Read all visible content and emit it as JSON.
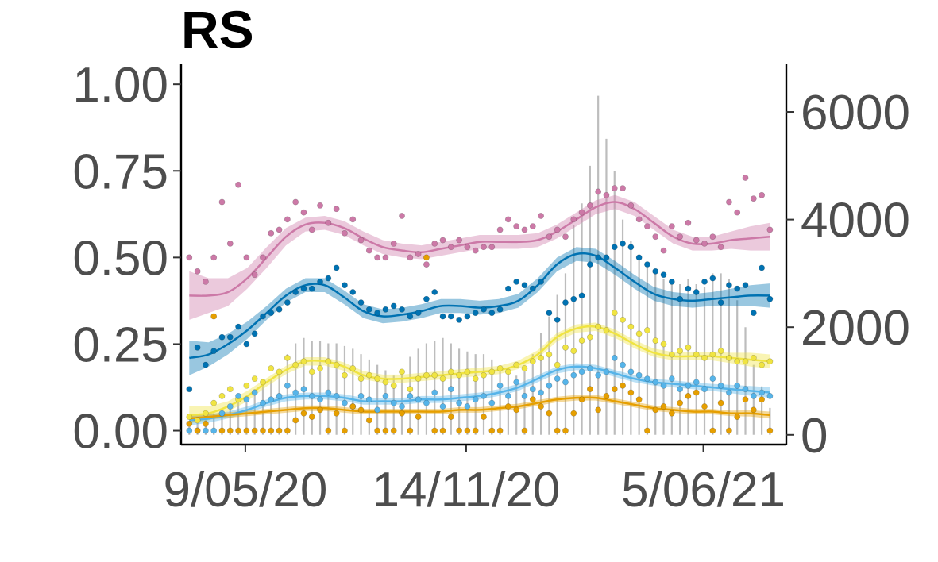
{
  "chart_data": {
    "type": "line",
    "title": "RS",
    "xlabel": "",
    "ylabel": "",
    "x_range": [
      "2020-03-15",
      "2021-08-15"
    ],
    "y_left_range": [
      -0.04,
      1.06
    ],
    "y_right_range": [
      -180,
      6900
    ],
    "y_left_ticks": [
      "0.00",
      "0.25",
      "0.50",
      "0.75",
      "1.00"
    ],
    "y_right_ticks": [
      "0",
      "2000",
      "4000",
      "6000"
    ],
    "x_ticks": [
      {
        "date": "2020-05-09",
        "label": "9/05/20"
      },
      {
        "date": "2020-11-14",
        "label": "14/11/20"
      },
      {
        "date": "2021-06-05",
        "label": "5/06/21"
      }
    ],
    "grid": false,
    "legend": "none",
    "bars": {
      "axis": "right",
      "color": "#bdbdbd",
      "dates": [
        "2020-03-22",
        "2020-03-29",
        "2020-04-05",
        "2020-04-12",
        "2020-04-19",
        "2020-04-26",
        "2020-05-03",
        "2020-05-10",
        "2020-05-17",
        "2020-05-24",
        "2020-05-31",
        "2020-06-07",
        "2020-06-14",
        "2020-06-21",
        "2020-06-28",
        "2020-07-05",
        "2020-07-12",
        "2020-07-19",
        "2020-07-26",
        "2020-08-02",
        "2020-08-09",
        "2020-08-16",
        "2020-08-23",
        "2020-08-30",
        "2020-09-06",
        "2020-09-13",
        "2020-09-20",
        "2020-09-27",
        "2020-10-04",
        "2020-10-11",
        "2020-10-18",
        "2020-10-25",
        "2020-11-01",
        "2020-11-08",
        "2020-11-15",
        "2020-11-22",
        "2020-11-29",
        "2020-12-06",
        "2020-12-13",
        "2020-12-20",
        "2020-12-27",
        "2021-01-03",
        "2021-01-10",
        "2021-01-17",
        "2021-01-24",
        "2021-01-31",
        "2021-02-07",
        "2021-02-14",
        "2021-02-21",
        "2021-02-28",
        "2021-03-07",
        "2021-03-14",
        "2021-03-21",
        "2021-03-28",
        "2021-04-04",
        "2021-04-11",
        "2021-04-18",
        "2021-04-25",
        "2021-05-02",
        "2021-05-09",
        "2021-05-16",
        "2021-05-23",
        "2021-05-30",
        "2021-06-06",
        "2021-06-13",
        "2021-06-20",
        "2021-06-27",
        "2021-07-04",
        "2021-07-11",
        "2021-07-18",
        "2021-07-25",
        "2021-08-01"
      ],
      "values": [
        150,
        220,
        300,
        400,
        480,
        560,
        620,
        700,
        850,
        950,
        1050,
        1200,
        1500,
        1700,
        1800,
        1750,
        1750,
        1700,
        1700,
        1650,
        1600,
        1500,
        1400,
        1300,
        1200,
        1100,
        1200,
        1450,
        1600,
        1700,
        1750,
        1800,
        1700,
        1600,
        1550,
        1500,
        1500,
        1400,
        1250,
        1200,
        1100,
        1250,
        1500,
        1900,
        2200,
        2600,
        3000,
        3900,
        4300,
        5000,
        6300,
        5500,
        4900,
        4000,
        3600,
        3300,
        3100,
        3000,
        2900,
        2800,
        2800,
        2900,
        2800,
        2750,
        3000,
        3000,
        2900,
        2500,
        2000,
        1300,
        900,
        500
      ]
    },
    "series": [
      {
        "color": "#cc79a7",
        "smooth": [
          0.39,
          0.39,
          0.4,
          0.44,
          0.5,
          0.56,
          0.595,
          0.6,
          0.585,
          0.555,
          0.53,
          0.52,
          0.515,
          0.525,
          0.535,
          0.545,
          0.545,
          0.545,
          0.55,
          0.575,
          0.61,
          0.645,
          0.66,
          0.64,
          0.6,
          0.56,
          0.54,
          0.54,
          0.55,
          0.555,
          0.56
        ],
        "band": [
          0.07,
          0.05,
          0.04,
          0.03,
          0.03,
          0.025,
          0.02,
          0.02,
          0.02,
          0.02,
          0.02,
          0.02,
          0.02,
          0.02,
          0.02,
          0.02,
          0.02,
          0.02,
          0.02,
          0.02,
          0.02,
          0.02,
          0.02,
          0.02,
          0.02,
          0.02,
          0.02,
          0.02,
          0.025,
          0.035,
          0.04
        ],
        "points": [
          0.5,
          0.46,
          0.43,
          0.5,
          0.66,
          0.54,
          0.71,
          0.5,
          0.45,
          0.5,
          0.57,
          0.58,
          0.61,
          0.66,
          0.63,
          0.58,
          0.65,
          0.6,
          0.64,
          0.57,
          0.61,
          0.55,
          0.52,
          0.5,
          0.5,
          0.54,
          0.62,
          0.5,
          0.51,
          0.48,
          0.54,
          0.55,
          0.53,
          0.55,
          0.53,
          0.52,
          0.53,
          0.53,
          0.58,
          0.61,
          0.59,
          0.58,
          0.59,
          0.62,
          0.56,
          0.58,
          0.56,
          0.61,
          0.63,
          0.65,
          0.69,
          0.68,
          0.7,
          0.7,
          0.65,
          0.61,
          0.59,
          0.56,
          0.52,
          0.59,
          0.56,
          0.6,
          0.55,
          0.54,
          0.56,
          0.53,
          0.66,
          0.63,
          0.73,
          0.67,
          0.68,
          0.58
        ]
      },
      {
        "color": "#0072b2",
        "smooth": [
          0.21,
          0.22,
          0.25,
          0.29,
          0.34,
          0.39,
          0.42,
          0.42,
          0.385,
          0.345,
          0.33,
          0.335,
          0.345,
          0.36,
          0.36,
          0.355,
          0.36,
          0.375,
          0.42,
          0.48,
          0.51,
          0.505,
          0.47,
          0.43,
          0.395,
          0.38,
          0.375,
          0.38,
          0.385,
          0.39,
          0.39
        ],
        "band": [
          0.05,
          0.035,
          0.03,
          0.025,
          0.02,
          0.02,
          0.02,
          0.02,
          0.02,
          0.02,
          0.02,
          0.02,
          0.02,
          0.02,
          0.02,
          0.02,
          0.02,
          0.02,
          0.02,
          0.02,
          0.02,
          0.02,
          0.02,
          0.02,
          0.02,
          0.02,
          0.02,
          0.02,
          0.025,
          0.03,
          0.035
        ],
        "points": [
          0.12,
          0.24,
          0.19,
          0.23,
          0.27,
          0.27,
          0.3,
          0.25,
          0.28,
          0.33,
          0.34,
          0.35,
          0.37,
          0.4,
          0.41,
          0.41,
          0.43,
          0.44,
          0.47,
          0.42,
          0.4,
          0.37,
          0.35,
          0.34,
          0.35,
          0.36,
          0.35,
          0.33,
          0.34,
          0.38,
          0.4,
          0.33,
          0.33,
          0.32,
          0.33,
          0.34,
          0.35,
          0.34,
          0.35,
          0.41,
          0.43,
          0.42,
          0.41,
          0.43,
          0.34,
          0.32,
          0.37,
          0.38,
          0.39,
          0.48,
          0.5,
          0.5,
          0.53,
          0.54,
          0.53,
          0.5,
          0.48,
          0.46,
          0.45,
          0.43,
          0.38,
          0.41,
          0.4,
          0.43,
          0.44,
          0.37,
          0.42,
          0.41,
          0.42,
          0.34,
          0.47,
          0.38
        ]
      },
      {
        "color": "#f0e442",
        "smooth": [
          0.045,
          0.05,
          0.07,
          0.1,
          0.14,
          0.175,
          0.2,
          0.2,
          0.185,
          0.16,
          0.15,
          0.15,
          0.155,
          0.16,
          0.165,
          0.17,
          0.175,
          0.19,
          0.22,
          0.27,
          0.295,
          0.3,
          0.28,
          0.25,
          0.225,
          0.215,
          0.215,
          0.215,
          0.21,
          0.205,
          0.2
        ],
        "band": [
          0.025,
          0.02,
          0.015,
          0.015,
          0.012,
          0.012,
          0.012,
          0.012,
          0.012,
          0.012,
          0.012,
          0.012,
          0.012,
          0.012,
          0.012,
          0.012,
          0.012,
          0.012,
          0.012,
          0.012,
          0.012,
          0.012,
          0.012,
          0.012,
          0.012,
          0.012,
          0.012,
          0.012,
          0.015,
          0.02,
          0.02
        ],
        "points": [
          0.04,
          0.03,
          0.05,
          0.08,
          0.1,
          0.12,
          0.09,
          0.13,
          0.15,
          0.14,
          0.18,
          0.17,
          0.21,
          0.19,
          0.2,
          0.17,
          0.18,
          0.2,
          0.19,
          0.16,
          0.18,
          0.15,
          0.16,
          0.15,
          0.14,
          0.13,
          0.17,
          0.12,
          0.15,
          0.16,
          0.16,
          0.15,
          0.17,
          0.16,
          0.17,
          0.15,
          0.16,
          0.17,
          0.18,
          0.17,
          0.19,
          0.18,
          0.2,
          0.21,
          0.22,
          0.19,
          0.24,
          0.23,
          0.26,
          0.27,
          0.3,
          0.29,
          0.34,
          0.32,
          0.3,
          0.28,
          0.29,
          0.26,
          0.25,
          0.22,
          0.23,
          0.24,
          0.22,
          0.21,
          0.22,
          0.23,
          0.21,
          0.2,
          0.2,
          0.21,
          0.19,
          0.2
        ]
      },
      {
        "color": "#56b4e9",
        "smooth": [
          0.03,
          0.035,
          0.045,
          0.06,
          0.08,
          0.095,
          0.1,
          0.1,
          0.095,
          0.085,
          0.085,
          0.085,
          0.09,
          0.09,
          0.095,
          0.1,
          0.11,
          0.125,
          0.15,
          0.175,
          0.185,
          0.18,
          0.165,
          0.15,
          0.14,
          0.135,
          0.13,
          0.125,
          0.12,
          0.115,
          0.11
        ],
        "band": [
          0.015,
          0.012,
          0.01,
          0.01,
          0.01,
          0.01,
          0.01,
          0.01,
          0.01,
          0.01,
          0.01,
          0.01,
          0.01,
          0.01,
          0.01,
          0.01,
          0.01,
          0.01,
          0.01,
          0.01,
          0.01,
          0.01,
          0.01,
          0.01,
          0.01,
          0.01,
          0.01,
          0.01,
          0.012,
          0.014,
          0.015
        ],
        "points": [
          0.0,
          0.0,
          0.0,
          0.0,
          0.05,
          0.07,
          0.1,
          0.09,
          0.11,
          0.08,
          0.09,
          0.1,
          0.13,
          0.11,
          0.12,
          0.1,
          0.09,
          0.11,
          0.1,
          0.08,
          0.07,
          0.1,
          0.09,
          0.06,
          0.1,
          0.08,
          0.07,
          0.1,
          0.09,
          0.08,
          0.11,
          0.07,
          0.12,
          0.08,
          0.07,
          0.09,
          0.1,
          0.08,
          0.13,
          0.1,
          0.14,
          0.1,
          0.12,
          0.11,
          0.13,
          0.15,
          0.14,
          0.16,
          0.17,
          0.18,
          0.16,
          0.17,
          0.21,
          0.19,
          0.17,
          0.16,
          0.15,
          0.14,
          0.13,
          0.15,
          0.12,
          0.13,
          0.14,
          0.12,
          0.15,
          0.13,
          0.11,
          0.13,
          0.12,
          0.1,
          0.11,
          0.1
        ]
      },
      {
        "color": "#e69f00",
        "smooth": [
          0.035,
          0.04,
          0.045,
          0.05,
          0.055,
          0.06,
          0.065,
          0.065,
          0.06,
          0.055,
          0.055,
          0.055,
          0.055,
          0.055,
          0.06,
          0.06,
          0.065,
          0.07,
          0.08,
          0.09,
          0.095,
          0.095,
          0.085,
          0.075,
          0.065,
          0.06,
          0.055,
          0.055,
          0.05,
          0.05,
          0.045
        ],
        "band": [
          0.01,
          0.008,
          0.008,
          0.008,
          0.008,
          0.008,
          0.008,
          0.008,
          0.008,
          0.008,
          0.008,
          0.008,
          0.008,
          0.008,
          0.008,
          0.008,
          0.008,
          0.008,
          0.008,
          0.008,
          0.008,
          0.008,
          0.008,
          0.008,
          0.008,
          0.008,
          0.008,
          0.008,
          0.008,
          0.009,
          0.01
        ],
        "points": [
          0.02,
          0.0,
          0.02,
          0.33,
          0.0,
          0.0,
          0.0,
          0.0,
          0.0,
          0.0,
          0.0,
          0.0,
          0.0,
          0.03,
          0.05,
          0.04,
          0.06,
          0.0,
          0.05,
          0.0,
          0.07,
          0.06,
          0.03,
          0.0,
          0.0,
          0.0,
          0.05,
          0.0,
          0.04,
          0.5,
          0.0,
          0.0,
          0.04,
          0.0,
          0.0,
          0.0,
          0.04,
          0.0,
          0.0,
          0.07,
          0.06,
          0.0,
          0.09,
          0.07,
          0.05,
          0.0,
          0.0,
          0.05,
          0.09,
          0.12,
          0.06,
          0.1,
          0.12,
          0.13,
          0.11,
          0.09,
          0.0,
          0.06,
          0.07,
          0.05,
          0.08,
          0.1,
          0.11,
          0.07,
          0.0,
          0.08,
          0.0,
          0.04,
          0.09,
          0.06,
          0.09,
          0.0
        ]
      }
    ]
  }
}
